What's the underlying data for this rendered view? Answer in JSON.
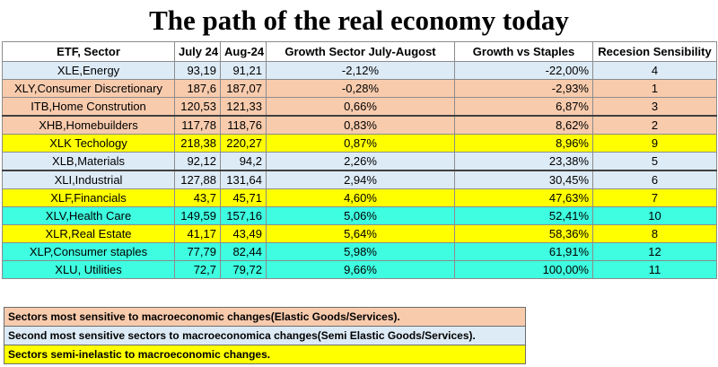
{
  "title": "The path of the real economy today",
  "colors": {
    "elastic": "#F8CBAD",
    "semi_elastic": "#DDEBF7",
    "semi_inelastic": "#FFFF00",
    "inelastic": "#3EFDE0"
  },
  "headers": [
    "ETF, Sector",
    "July 24",
    "Aug-24",
    "Growth Sector July-Augost",
    "Growth vs Staples",
    "Recesion Sensibility"
  ],
  "rows": [
    {
      "etf": "XLE,Energy",
      "july": "93,19",
      "aug": "91,21",
      "growth": "-2,12%",
      "vs_staples": "-22,00%",
      "sensibility": "4",
      "category": "semi_elastic"
    },
    {
      "etf": "XLY,Consumer Discretionary",
      "july": "187,6",
      "aug": "187,07",
      "growth": "-0,28%",
      "vs_staples": "-2,93%",
      "sensibility": "1",
      "category": "elastic"
    },
    {
      "etf": "ITB,Home Constrution",
      "july": "120,53",
      "aug": "121,33",
      "growth": "0,66%",
      "vs_staples": "6,87%",
      "sensibility": "3",
      "category": "elastic"
    },
    {
      "etf": "XHB,Homebuilders",
      "july": "117,78",
      "aug": "118,76",
      "growth": "0,83%",
      "vs_staples": "8,62%",
      "sensibility": "2",
      "category": "elastic"
    },
    {
      "etf": "XLK Techology",
      "july": "218,38",
      "aug": "220,27",
      "growth": "0,87%",
      "vs_staples": "8,96%",
      "sensibility": "9",
      "category": "semi_inelastic"
    },
    {
      "etf": "XLB,Materials",
      "july": "92,12",
      "aug": "94,2",
      "growth": "2,26%",
      "vs_staples": "23,38%",
      "sensibility": "5",
      "category": "semi_elastic"
    },
    {
      "etf": "XLI,Industrial",
      "july": "127,88",
      "aug": "131,64",
      "growth": "2,94%",
      "vs_staples": "30,45%",
      "sensibility": "6",
      "category": "semi_elastic"
    },
    {
      "etf": "XLF,Financials",
      "july": "43,7",
      "aug": "45,71",
      "growth": "4,60%",
      "vs_staples": "47,63%",
      "sensibility": "7",
      "category": "semi_inelastic"
    },
    {
      "etf": "XLV,Health Care",
      "july": "149,59",
      "aug": "157,16",
      "growth": "5,06%",
      "vs_staples": "52,41%",
      "sensibility": "10",
      "category": "inelastic"
    },
    {
      "etf": "XLR,Real Estate",
      "july": "41,17",
      "aug": "43,49",
      "growth": "5,64%",
      "vs_staples": "58,36%",
      "sensibility": "8",
      "category": "semi_inelastic"
    },
    {
      "etf": "XLP,Consumer staples",
      "july": "77,79",
      "aug": "82,44",
      "growth": "5,98%",
      "vs_staples": "61,91%",
      "sensibility": "12",
      "category": "inelastic"
    },
    {
      "etf": "XLU, Utilities",
      "july": "72,7",
      "aug": "79,72",
      "growth": "9,66%",
      "vs_staples": "100,00%",
      "sensibility": "11",
      "category": "inelastic"
    }
  ],
  "legend": [
    {
      "text": "Sectors most sensitive to macroeconomic changes(Elastic Goods/Services).",
      "category": "elastic"
    },
    {
      "text": "Second most sensitive sectors to macroeconomica changes(Semi Elastic Goods/Services).",
      "category": "semi_elastic"
    },
    {
      "text": "Sectors semi-inelastic to macroeconomic changes.",
      "category": "semi_inelastic"
    }
  ]
}
